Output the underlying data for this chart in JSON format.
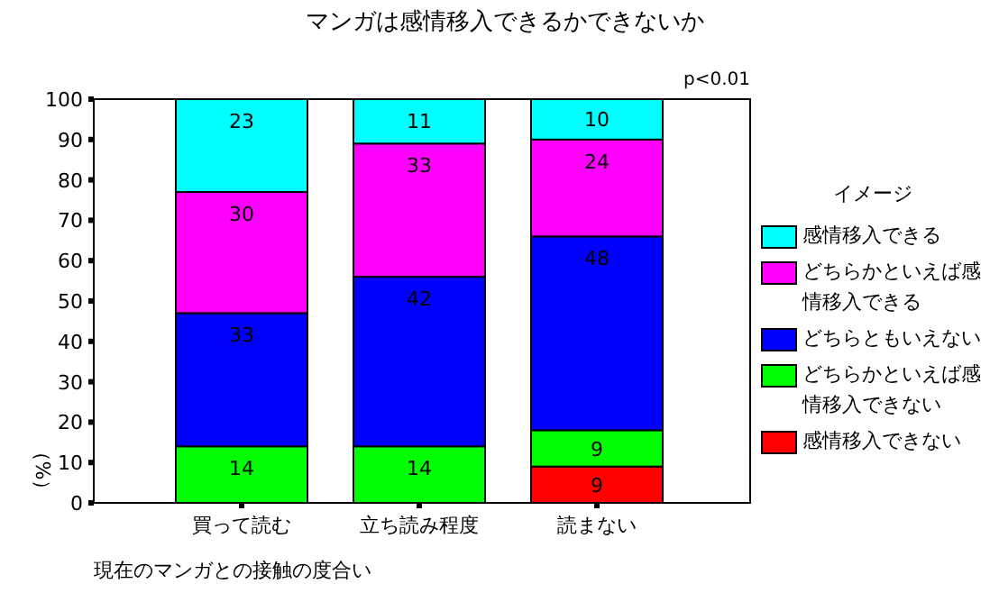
{
  "chart_data": {
    "type": "bar",
    "stacked": true,
    "title": "マンガは感情移入できるかできないか",
    "xlabel": "現在のマンガとの接触の度合い",
    "ylabel": "（%）",
    "legend_title": "イメージ",
    "annotations": [
      "p<0.01"
    ],
    "categories": [
      "買って読む",
      "立ち読み程度",
      "読まない"
    ],
    "series": [
      {
        "name": "感情移入できない",
        "color": "#ff0000",
        "values": [
          null,
          null,
          9
        ]
      },
      {
        "name": "どちらかといえば感情移入できない",
        "color": "#00ff00",
        "values": [
          14,
          14,
          9
        ]
      },
      {
        "name": "どちらともいえない",
        "color": "#0000ff",
        "values": [
          33,
          42,
          48
        ]
      },
      {
        "name": "どちらかといえば感情移入できる",
        "color": "#ff00ff",
        "values": [
          30,
          33,
          24
        ]
      },
      {
        "name": "感情移入できる",
        "color": "#00ffff",
        "values": [
          23,
          11,
          10
        ]
      }
    ],
    "ylim": [
      0,
      100
    ],
    "yticks": [
      0,
      10,
      20,
      30,
      40,
      50,
      60,
      70,
      80,
      90,
      100
    ],
    "data_labels": true,
    "legend": "right",
    "grid": false
  }
}
